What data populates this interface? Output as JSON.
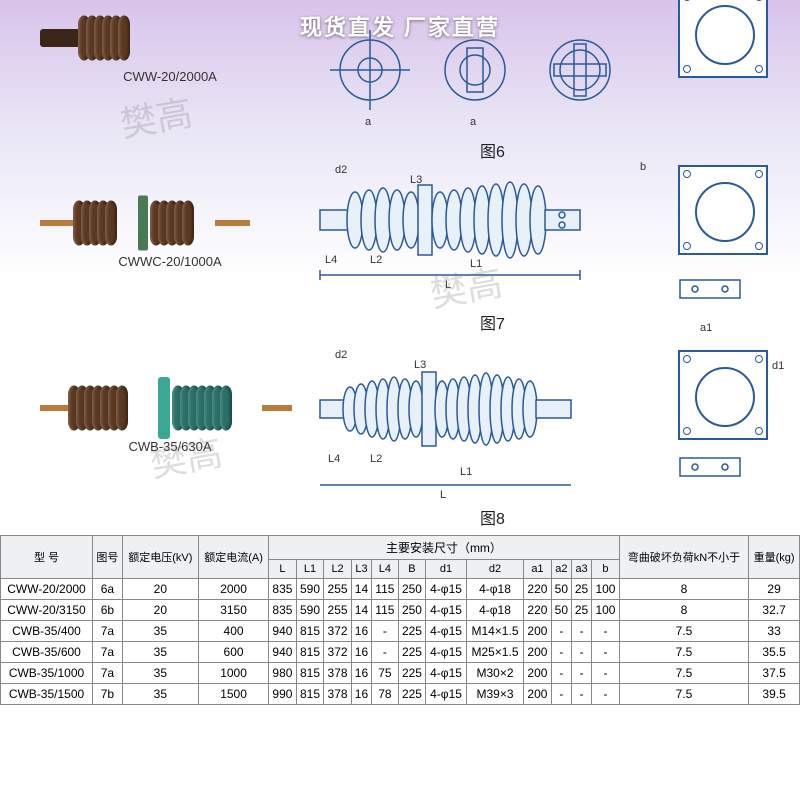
{
  "badge_text": "现货直发 厂家直营",
  "row1": {
    "label": "CWW-20/2000A",
    "fig_label": "图6"
  },
  "row2": {
    "label": "CWWC-20/1000A",
    "fig_label": "图7"
  },
  "row3": {
    "label": "CWB-35/630A",
    "fig_label": "图8"
  },
  "dims": {
    "L": "L",
    "L1": "L1",
    "L2": "L2",
    "L3": "L3",
    "L4": "L4",
    "d1": "d1",
    "d2": "d2",
    "b": "b",
    "a1": "a1",
    "a2": "a2",
    "a3": "a3"
  },
  "table": {
    "header": {
      "model": "型 号",
      "fig": "图号",
      "voltage": "额定电压(kV)",
      "current": "额定电流(A)",
      "dims_group": "主要安装尺寸（mm）",
      "L": "L",
      "L1": "L1",
      "L2": "L2",
      "L3": "L3",
      "L4": "L4",
      "B": "B",
      "d1": "d1",
      "d2": "d2",
      "a1": "a1",
      "a2": "a2",
      "a3": "a3",
      "b": "b",
      "bend": "弯曲破坏负荷kN不小于",
      "weight": "重量(kg)"
    },
    "rows": [
      {
        "model": "CWW-20/2000",
        "fig": "6a",
        "kv": "20",
        "a": "2000",
        "L": "835",
        "L1": "590",
        "L2": "255",
        "L3": "14",
        "L4": "115",
        "B": "250",
        "d1": "4-φ15",
        "d2": "4-φ18",
        "a1": "220",
        "a2": "50",
        "a3": "25",
        "b": "100",
        "bend": "8",
        "wt": "29"
      },
      {
        "model": "CWW-20/3150",
        "fig": "6b",
        "kv": "20",
        "a": "3150",
        "L": "835",
        "L1": "590",
        "L2": "255",
        "L3": "14",
        "L4": "115",
        "B": "250",
        "d1": "4-φ15",
        "d2": "4-φ18",
        "a1": "220",
        "a2": "50",
        "a3": "25",
        "b": "100",
        "bend": "8",
        "wt": "32.7"
      },
      {
        "model": "CWB-35/400",
        "fig": "7a",
        "kv": "35",
        "a": "400",
        "L": "940",
        "L1": "815",
        "L2": "372",
        "L3": "16",
        "L4": "-",
        "B": "225",
        "d1": "4-φ15",
        "d2": "M14×1.5",
        "a1": "200",
        "a2": "-",
        "a3": "-",
        "b": "-",
        "bend": "7.5",
        "wt": "33"
      },
      {
        "model": "CWB-35/600",
        "fig": "7a",
        "kv": "35",
        "a": "600",
        "L": "940",
        "L1": "815",
        "L2": "372",
        "L3": "16",
        "L4": "-",
        "B": "225",
        "d1": "4-φ15",
        "d2": "M25×1.5",
        "a1": "200",
        "a2": "-",
        "a3": "-",
        "b": "-",
        "bend": "7.5",
        "wt": "35.5"
      },
      {
        "model": "CWB-35/1000",
        "fig": "7a",
        "kv": "35",
        "a": "1000",
        "L": "980",
        "L1": "815",
        "L2": "378",
        "L3": "16",
        "L4": "75",
        "B": "225",
        "d1": "4-φ15",
        "d2": "M30×2",
        "a1": "200",
        "a2": "-",
        "a3": "-",
        "b": "-",
        "bend": "7.5",
        "wt": "37.5"
      },
      {
        "model": "CWB-35/1500",
        "fig": "7b",
        "kv": "35",
        "a": "1500",
        "L": "990",
        "L1": "815",
        "L2": "378",
        "L3": "16",
        "L4": "78",
        "B": "225",
        "d1": "4-φ15",
        "d2": "M39×3",
        "a1": "200",
        "a2": "-",
        "a3": "-",
        "b": "-",
        "bend": "7.5",
        "wt": "39.5"
      }
    ]
  },
  "colors": {
    "porcelain": "#5d3921",
    "teal": "#2a7068",
    "copper": "#b87d3e",
    "line": "#2a5a9a"
  }
}
